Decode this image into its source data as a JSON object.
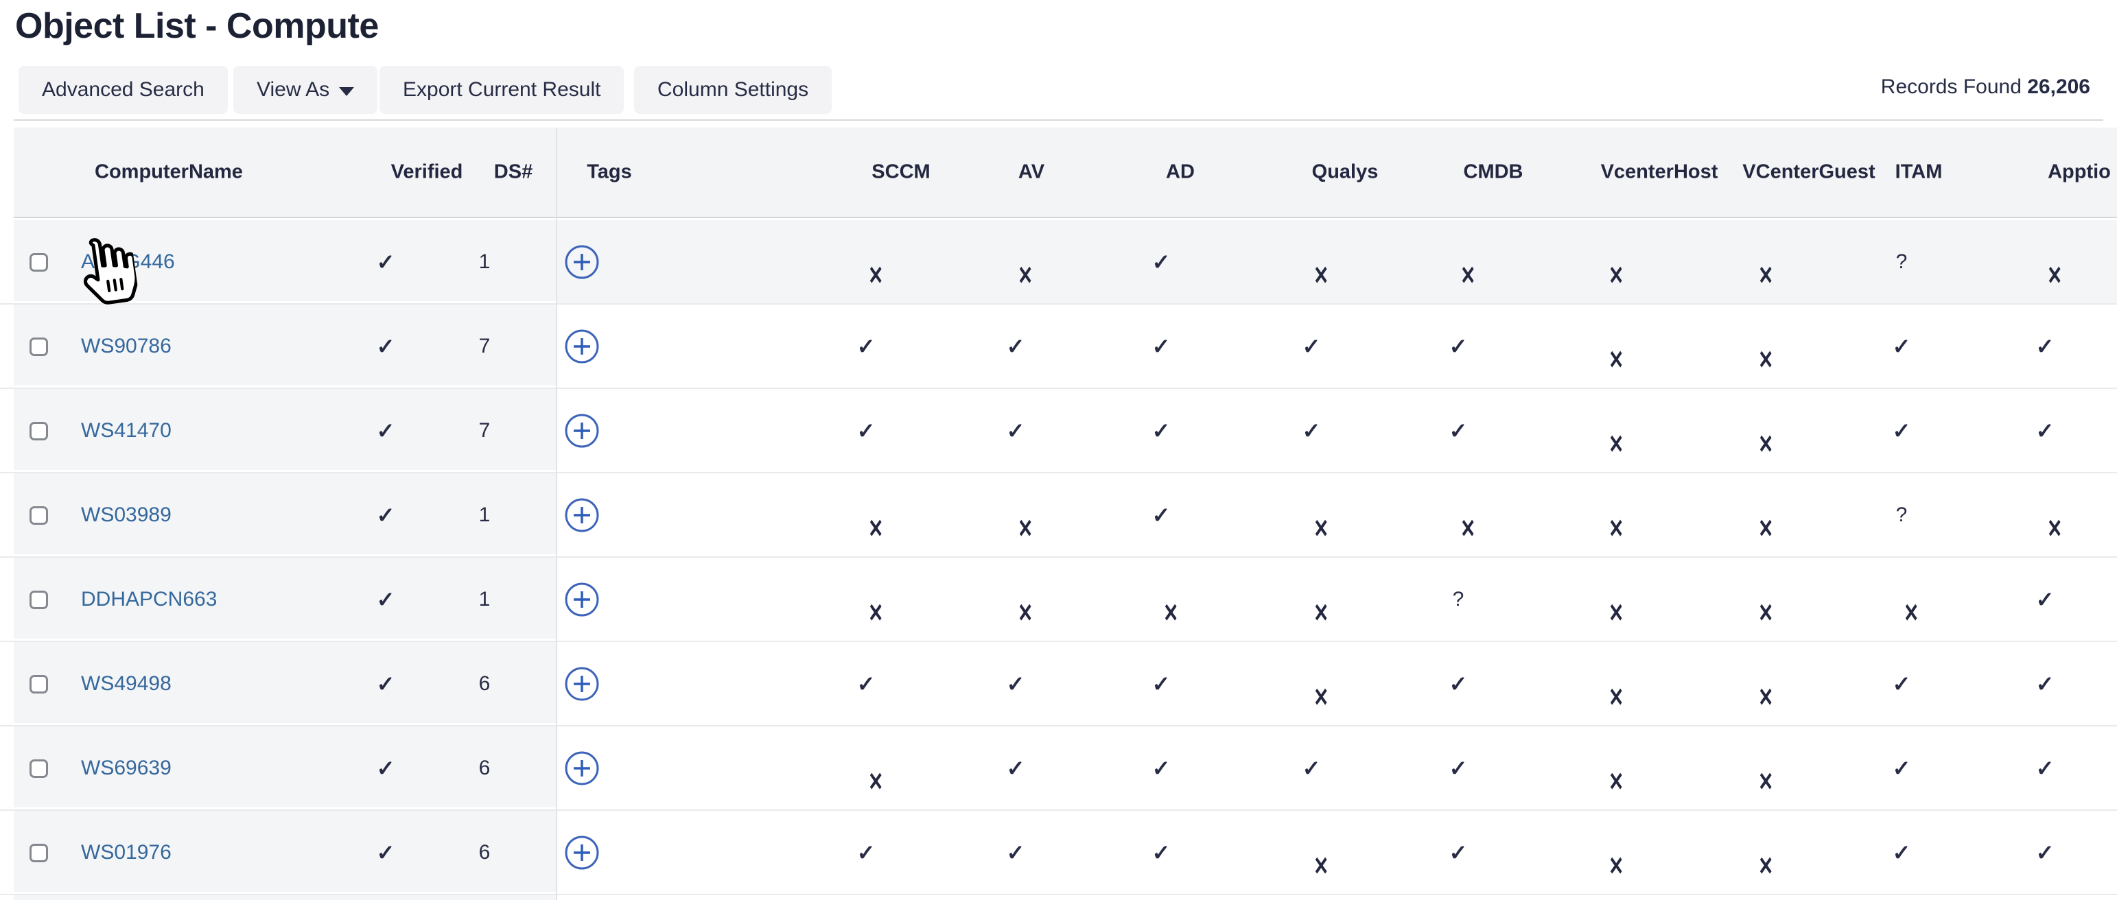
{
  "page": {
    "title": "Object List - Compute"
  },
  "toolbar": {
    "advanced_search_label": "Advanced Search",
    "view_as_label": "View As",
    "export_label": "Export Current Result",
    "column_settings_label": "Column Settings",
    "records_found_label": "Records Found",
    "records_found_value": "26,206"
  },
  "icons": {
    "view_as_caret": "caret-down-icon",
    "add_tag": "plus-circle-icon",
    "cursor": "pointer-hand-cursor"
  },
  "colors": {
    "accent_blue": "#35689c",
    "plus_circle_blue": "#3d64b8",
    "plus_sign_blue": "#2e5db8",
    "dark_navy_text": "#23273f",
    "header_band_gray": "#f3f4f6",
    "frozen_column_gray": "#f4f5f7"
  },
  "table": {
    "columns": [
      {
        "key": "computername",
        "label": "ComputerName"
      },
      {
        "key": "verified",
        "label": "Verified"
      },
      {
        "key": "ds",
        "label": "DS#"
      },
      {
        "key": "tags",
        "label": "Tags"
      },
      {
        "key": "sccm",
        "label": "SCCM"
      },
      {
        "key": "av",
        "label": "AV"
      },
      {
        "key": "ad",
        "label": "AD"
      },
      {
        "key": "qualys",
        "label": "Qualys"
      },
      {
        "key": "cmdb",
        "label": "CMDB"
      },
      {
        "key": "vcenterhost",
        "label": "VcenterHost"
      },
      {
        "key": "vcenterguest",
        "label": "VCenterGuest"
      },
      {
        "key": "itam",
        "label": "ITAM"
      },
      {
        "key": "apptio",
        "label": "Apptio"
      }
    ],
    "status_glyphs": {
      "check": "✓",
      "x": "✕",
      "question": "?"
    },
    "rows": [
      {
        "name": "ANCG446",
        "verified": "check",
        "ds": "1",
        "hovered": true,
        "statuses": [
          "x",
          "x",
          "check",
          "x",
          "x",
          "x",
          "x",
          "question",
          "x"
        ]
      },
      {
        "name": "WS90786",
        "verified": "check",
        "ds": "7",
        "hovered": false,
        "statuses": [
          "check",
          "check",
          "check",
          "check",
          "check",
          "x",
          "x",
          "check",
          "check"
        ]
      },
      {
        "name": "WS41470",
        "verified": "check",
        "ds": "7",
        "hovered": false,
        "statuses": [
          "check",
          "check",
          "check",
          "check",
          "check",
          "x",
          "x",
          "check",
          "check"
        ]
      },
      {
        "name": "WS03989",
        "verified": "check",
        "ds": "1",
        "hovered": false,
        "statuses": [
          "x",
          "x",
          "check",
          "x",
          "x",
          "x",
          "x",
          "question",
          "x"
        ]
      },
      {
        "name": "DDHAPCN663",
        "verified": "check",
        "ds": "1",
        "hovered": false,
        "statuses": [
          "x",
          "x",
          "x",
          "x",
          "question",
          "x",
          "x",
          "x",
          "check"
        ]
      },
      {
        "name": "WS49498",
        "verified": "check",
        "ds": "6",
        "hovered": false,
        "statuses": [
          "check",
          "check",
          "check",
          "x",
          "check",
          "x",
          "x",
          "check",
          "check"
        ]
      },
      {
        "name": "WS69639",
        "verified": "check",
        "ds": "6",
        "hovered": false,
        "statuses": [
          "x",
          "check",
          "check",
          "check",
          "check",
          "x",
          "x",
          "check",
          "check"
        ]
      },
      {
        "name": "WS01976",
        "verified": "check",
        "ds": "6",
        "hovered": false,
        "statuses": [
          "check",
          "check",
          "check",
          "x",
          "check",
          "x",
          "x",
          "check",
          "check"
        ]
      }
    ]
  }
}
